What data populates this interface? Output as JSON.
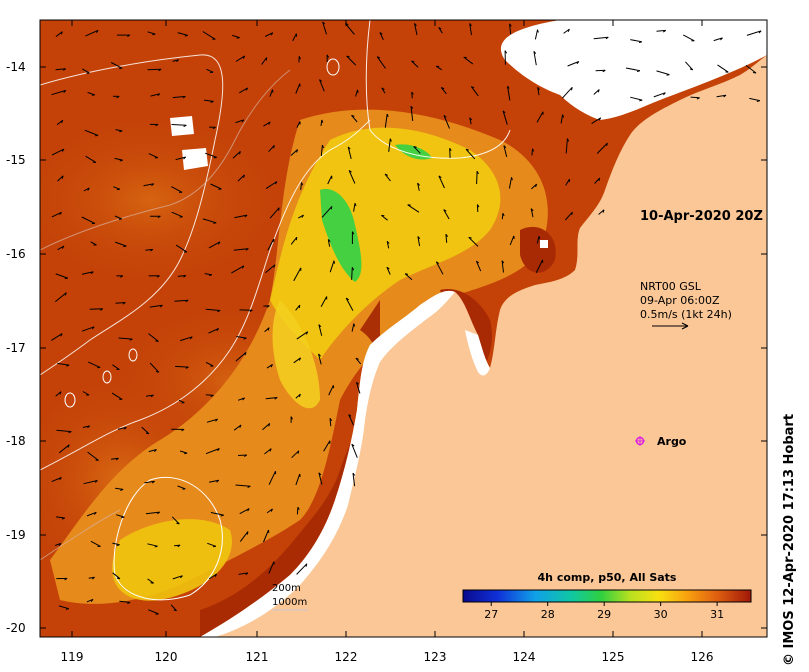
{
  "map": {
    "lat_ticks": [
      "-14",
      "-15",
      "-16",
      "-17",
      "-18",
      "-19",
      "-20"
    ],
    "lon_ticks": [
      "119",
      "120",
      "121",
      "122",
      "123",
      "124",
      "125",
      "126"
    ],
    "colors": {
      "land": "#fbc797",
      "sea_warm": "#c44208",
      "sea_hot": "#a82a04",
      "sea_mid": "#e7811a",
      "sea_yellow": "#f2c80c",
      "sea_cool": "#41d03c",
      "argo": "#e020e0"
    }
  },
  "annotations": {
    "date": "10-Apr-2020 20Z",
    "current_model": "NRT00 GSL",
    "current_time": "09-Apr 06:00Z",
    "current_scale": "0.5m/s (1kt 24h)",
    "argo_label": "Argo",
    "contour_200": "200m",
    "contour_1000": "1000m"
  },
  "colorbar": {
    "title": "4h comp, p50, All Sats",
    "ticks": [
      "27",
      "28",
      "29",
      "30",
      "31"
    ],
    "min": 26.5,
    "max": 31.6
  },
  "credit": "© IMOS 12-Apr-2020 17:13 Hobart"
}
